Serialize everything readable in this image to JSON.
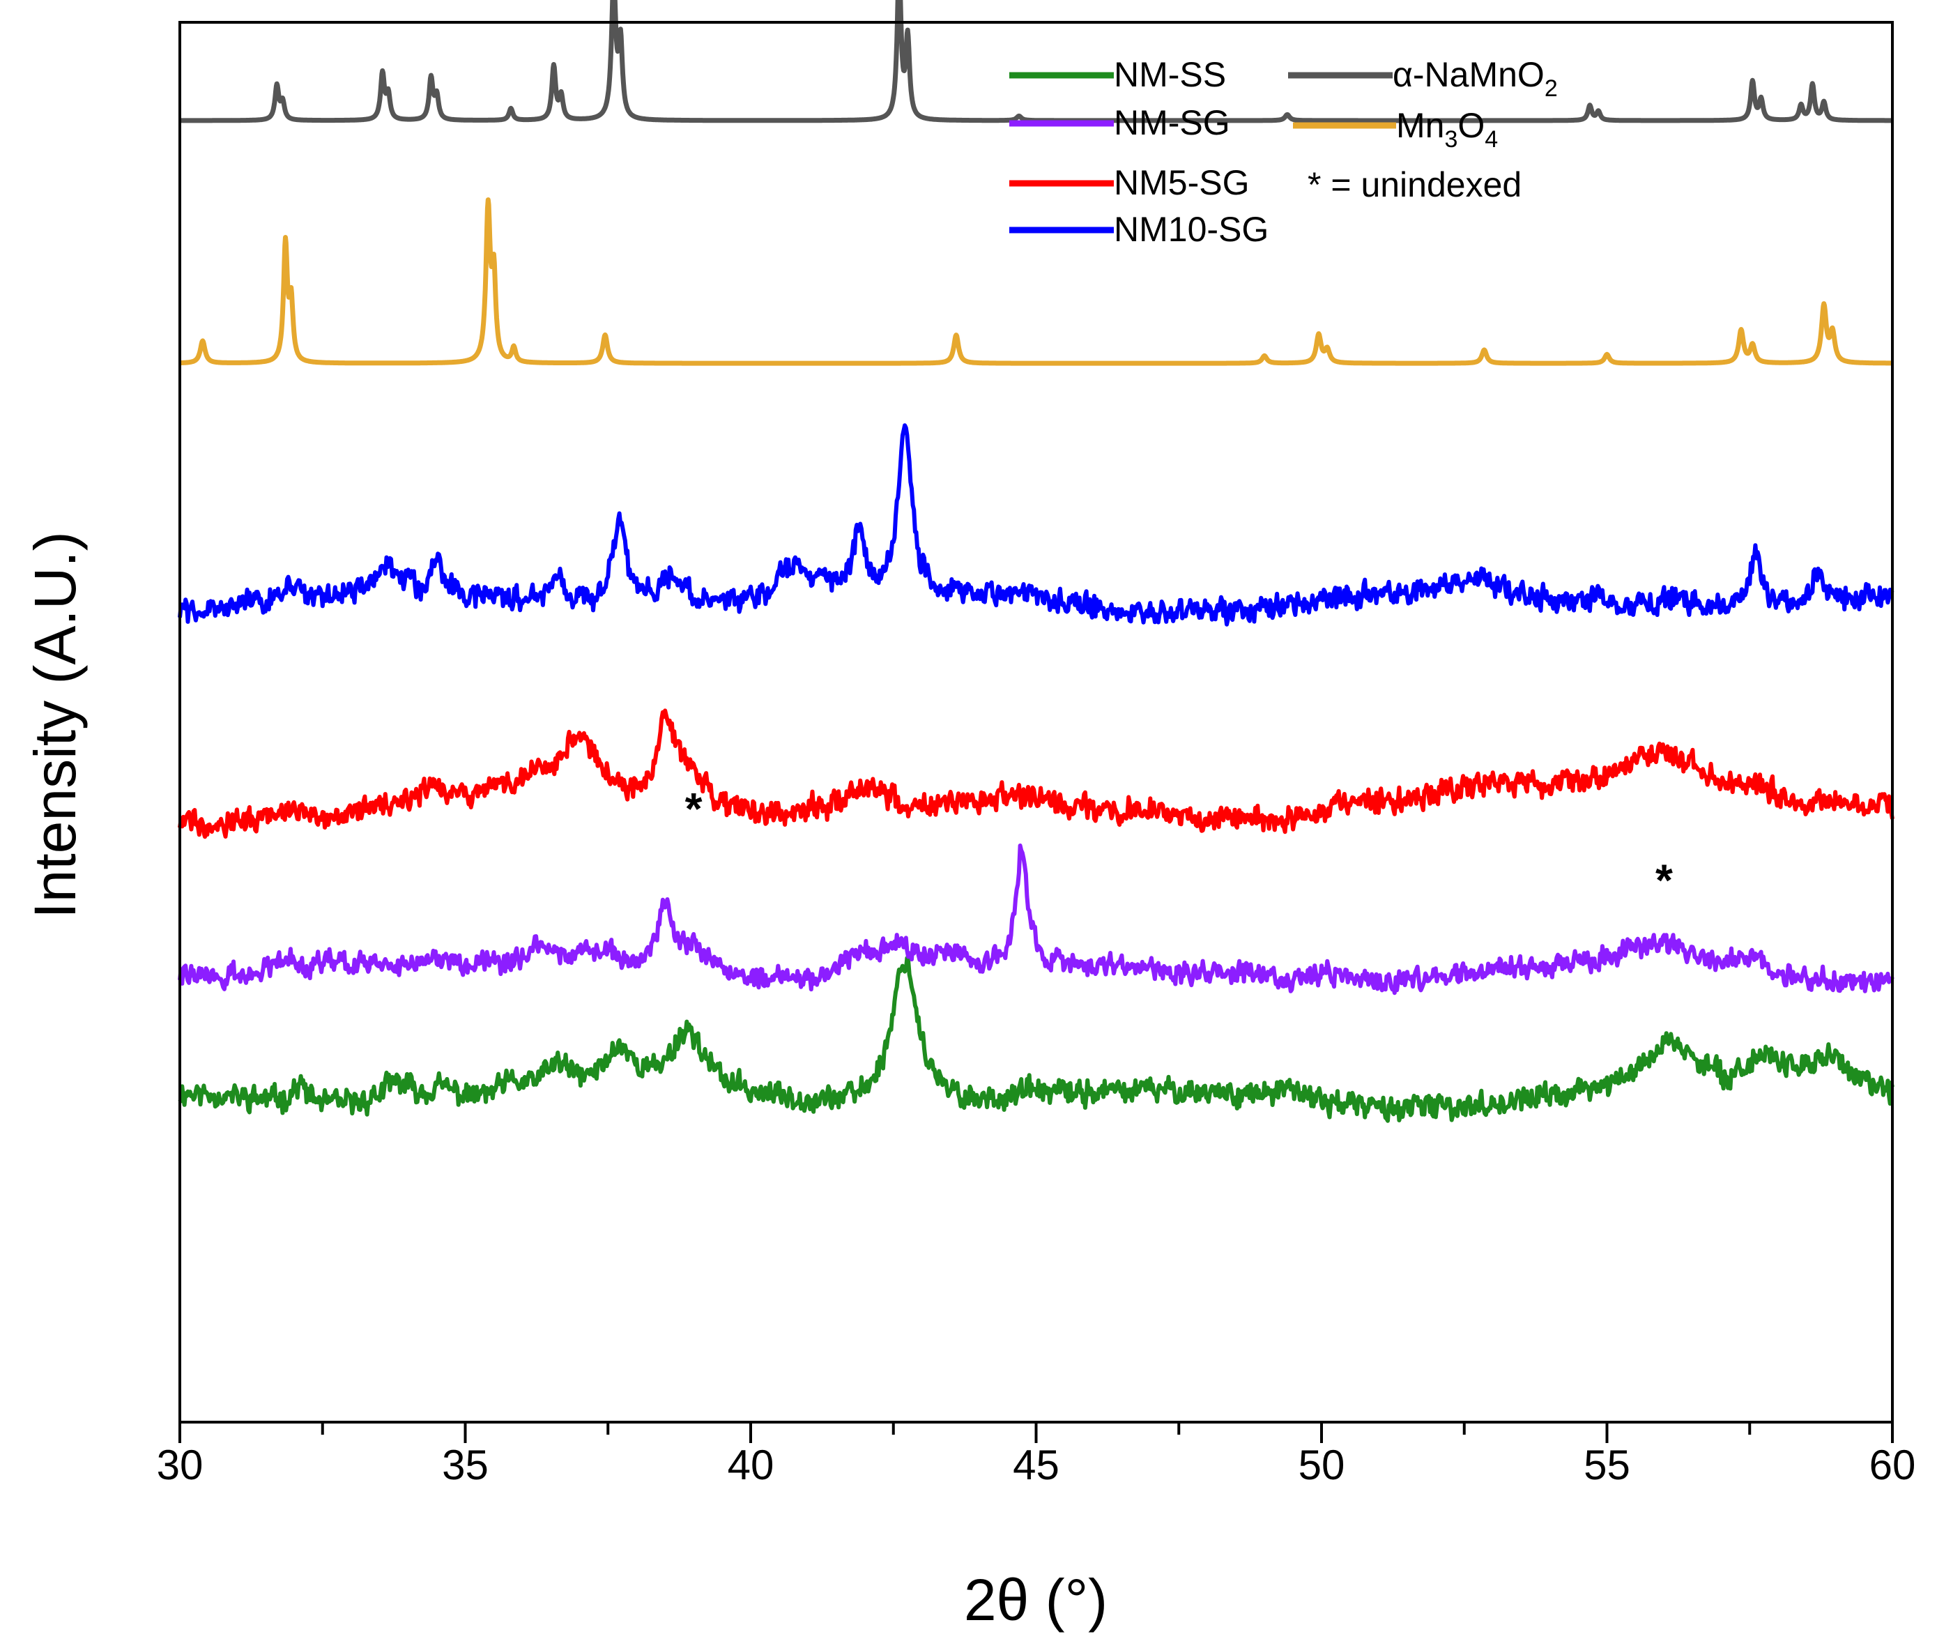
{
  "chart_data": {
    "type": "line",
    "title": "",
    "xlabel": "2θ (°)",
    "ylabel": "Intensity (A.U.)",
    "xlim": [
      30,
      60
    ],
    "xticks": [
      30,
      35,
      40,
      45,
      50,
      55,
      60
    ],
    "xtick_labels": [
      "30",
      "35",
      "40",
      "45",
      "50",
      "55",
      "60"
    ],
    "grid": false,
    "legend_position": "top-right",
    "annotations": {
      "star_symbol": "*",
      "stars": [
        {
          "x": 39.0,
          "y": 20.6
        },
        {
          "x": 56.0,
          "y": 18.2
        }
      ]
    },
    "series": [
      {
        "name": "NM-SS",
        "legend": "NM-SS",
        "color": "#1e8c1e",
        "baseline": 10.8,
        "noise": 0.45,
        "seed": 11,
        "peaks": [
          [
            32.1,
            0.6,
            0.15
          ],
          [
            33.8,
            0.8,
            0.35
          ],
          [
            34.6,
            0.5,
            0.3
          ],
          [
            35.8,
            0.4,
            0.3
          ],
          [
            36.6,
            0.9,
            0.3
          ],
          [
            37.7,
            1.3,
            0.3
          ],
          [
            38.9,
            2.0,
            0.35
          ],
          [
            42.7,
            5.0,
            0.28
          ],
          [
            44.9,
            0.25,
            0.3
          ],
          [
            49.5,
            0.3,
            0.4
          ],
          [
            56.1,
            1.6,
            0.5
          ],
          [
            57.8,
            1.1,
            0.4
          ],
          [
            58.9,
            1.4,
            0.5
          ],
          [
            59.9,
            0.3,
            0.4
          ]
        ]
      },
      {
        "name": "NM-SG",
        "legend": "NM-SG",
        "color": "#8c1eff",
        "baseline": 15.0,
        "noise": 0.4,
        "seed": 22,
        "peaks": [
          [
            31.8,
            0.8,
            0.3
          ],
          [
            32.6,
            0.6,
            0.4
          ],
          [
            33.5,
            0.5,
            0.4
          ],
          [
            34.5,
            0.4,
            0.4
          ],
          [
            36.3,
            0.4,
            0.4
          ],
          [
            37.3,
            0.5,
            0.4
          ],
          [
            38.5,
            2.1,
            0.15
          ],
          [
            39.0,
            0.8,
            0.3
          ],
          [
            41.9,
            0.8,
            0.4
          ],
          [
            42.6,
            1.0,
            0.4
          ],
          [
            43.6,
            0.5,
            0.3
          ],
          [
            44.75,
            4.0,
            0.12
          ],
          [
            48.8,
            0.3,
            0.3
          ],
          [
            50.1,
            0.3,
            0.4
          ],
          [
            56.0,
            0.8,
            0.8
          ],
          [
            57.5,
            0.5,
            0.5
          ]
        ]
      },
      {
        "name": "NM5-SG",
        "legend": "NM5-SG",
        "color": "#ff0000",
        "baseline": 20.4,
        "noise": 0.45,
        "seed": 33,
        "peaks": [
          [
            31.9,
            0.3,
            0.4
          ],
          [
            34.4,
            0.4,
            0.3
          ],
          [
            36.0,
            0.5,
            0.6
          ],
          [
            37.0,
            2.2,
            0.5
          ],
          [
            38.5,
            2.4,
            0.18
          ],
          [
            38.9,
            1.5,
            0.4
          ],
          [
            41.0,
            0.3,
            0.4
          ],
          [
            42.0,
            0.9,
            0.35
          ],
          [
            44.8,
            0.3,
            0.4
          ],
          [
            46.8,
            0.2,
            0.3
          ],
          [
            50.5,
            0.3,
            0.5
          ],
          [
            53.0,
            0.5,
            1.2
          ],
          [
            56.0,
            2.0,
            1.1
          ],
          [
            57.6,
            0.6,
            0.6
          ],
          [
            59.0,
            0.3,
            0.5
          ]
        ]
      },
      {
        "name": "NM10-SG",
        "legend": "NM10-SG",
        "color": "#0000ff",
        "baseline": 27.5,
        "noise": 0.45,
        "seed": 44,
        "peaks": [
          [
            31.9,
            0.6,
            0.15
          ],
          [
            33.6,
            0.8,
            0.3
          ],
          [
            34.5,
            1.2,
            0.1
          ],
          [
            36.6,
            1.0,
            0.12
          ],
          [
            37.7,
            2.9,
            0.15
          ],
          [
            38.6,
            1.0,
            0.35
          ],
          [
            40.8,
            1.3,
            0.35
          ],
          [
            41.9,
            2.0,
            0.12
          ],
          [
            42.7,
            5.5,
            0.14
          ],
          [
            44.8,
            0.3,
            0.4
          ],
          [
            52.7,
            0.6,
            0.5
          ],
          [
            54.8,
            0.3,
            0.3
          ],
          [
            56.2,
            0.5,
            0.3
          ],
          [
            57.6,
            1.8,
            0.12
          ],
          [
            58.7,
            1.1,
            0.1
          ]
        ]
      },
      {
        "name": "Mn3O4",
        "legend": "Mn",
        "legend_sub1": "3",
        "legend_mid": "O",
        "legend_sub2": "4",
        "color": "#e6a82e",
        "baseline": 35.55,
        "noise": 0,
        "seed": 55,
        "peaks": [
          [
            30.4,
            0.75,
            0.05
          ],
          [
            31.85,
            3.95,
            0.04
          ],
          [
            31.95,
            2.0,
            0.04
          ],
          [
            35.4,
            5.1,
            0.045
          ],
          [
            35.5,
            2.8,
            0.04
          ],
          [
            35.85,
            0.5,
            0.04
          ],
          [
            37.45,
            0.95,
            0.05
          ],
          [
            43.6,
            0.95,
            0.05
          ],
          [
            49.0,
            0.25,
            0.05
          ],
          [
            49.95,
            0.95,
            0.05
          ],
          [
            50.1,
            0.45,
            0.05
          ],
          [
            52.85,
            0.45,
            0.05
          ],
          [
            55.0,
            0.3,
            0.05
          ],
          [
            57.35,
            1.1,
            0.05
          ],
          [
            57.55,
            0.6,
            0.05
          ],
          [
            58.8,
            1.9,
            0.05
          ],
          [
            58.95,
            1.0,
            0.05
          ]
        ]
      },
      {
        "name": "α-NaMnO2",
        "legend": "α-NaMnO",
        "legend_sub1": "2",
        "color": "#555555",
        "baseline": 43.7,
        "noise": 0,
        "seed": 66,
        "peaks": [
          [
            31.7,
            1.15,
            0.04
          ],
          [
            31.8,
            0.6,
            0.04
          ],
          [
            33.55,
            1.55,
            0.04
          ],
          [
            33.65,
            0.85,
            0.04
          ],
          [
            34.4,
            1.4,
            0.04
          ],
          [
            34.5,
            0.8,
            0.04
          ],
          [
            35.8,
            0.4,
            0.04
          ],
          [
            36.55,
            1.8,
            0.04
          ],
          [
            36.68,
            0.8,
            0.04
          ],
          [
            37.6,
            4.6,
            0.045
          ],
          [
            37.72,
            2.5,
            0.04
          ],
          [
            42.6,
            5.1,
            0.04
          ],
          [
            42.75,
            2.7,
            0.04
          ],
          [
            44.7,
            0.15,
            0.05
          ],
          [
            49.4,
            0.2,
            0.05
          ],
          [
            54.7,
            0.5,
            0.04
          ],
          [
            54.85,
            0.3,
            0.04
          ],
          [
            57.55,
            1.3,
            0.04
          ],
          [
            57.7,
            0.7,
            0.04
          ],
          [
            58.4,
            0.5,
            0.04
          ],
          [
            58.6,
            1.2,
            0.04
          ],
          [
            58.8,
            0.6,
            0.04
          ]
        ]
      }
    ],
    "legend_note": "* = unindexed"
  }
}
